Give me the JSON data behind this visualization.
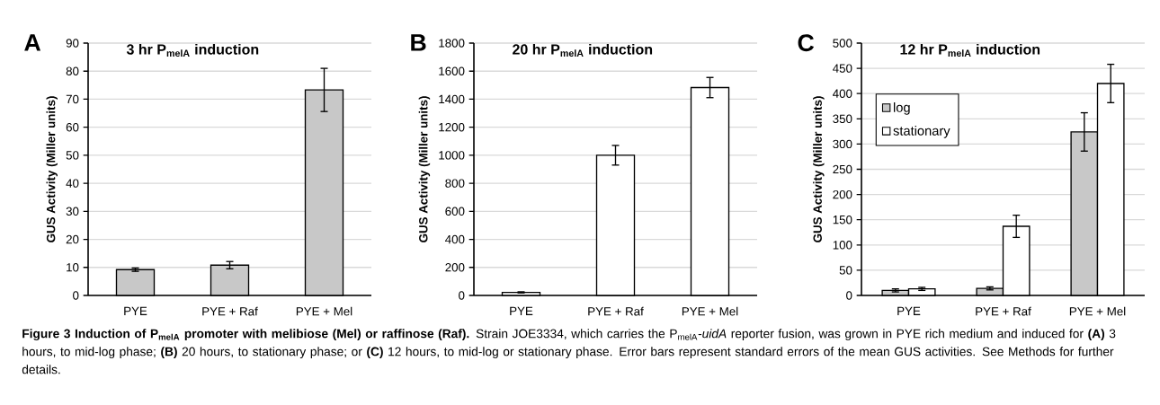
{
  "chart_data": [
    {
      "type": "bar",
      "title": "3 hr P$_{melA}$ induction",
      "ylabel": "GUS Activity (Miller units)",
      "categories": [
        "PYE",
        "PYE + Raf",
        "PYE + Mel"
      ],
      "series": [
        {
          "color": "#c8c8c8",
          "values": [
            9.2,
            10.8,
            73.3
          ],
          "errors": [
            0.6,
            1.3,
            7.7
          ]
        }
      ],
      "ylim": [
        0,
        90
      ],
      "yticks": [
        0,
        10,
        20,
        30,
        40,
        50,
        60,
        70,
        80,
        90
      ],
      "grid": "y",
      "annotations": [
        "A",
        "Figure 3 Induction of P$_{melA}$ promoter with melibiose (Mel) or raffinose (Raf).",
        "Strain JOE3334, which carries the P$_{melA}$-*uidA* reporter fusion, was grown in PYE rich medium and induced for **(A)** 3 hours, to mid-log phase; **(B)** 20 hours, to stationary phase; or **(C)** 12 hours, to mid-log or stationary phase. Error bars represent standard errors of the mean GUS activities. See Methods for further details."
      ]
    },
    {
      "type": "bar",
      "title": "20 hr P$_{melA}$ induction",
      "ylabel": "GUS Activity (Miller units)",
      "categories": [
        "PYE",
        "PYE + Raf",
        "PYE + Mel"
      ],
      "series": [
        {
          "color": "#ffffff",
          "values": [
            22,
            1000,
            1483
          ],
          "errors": [
            4,
            70,
            72
          ]
        }
      ],
      "ylim": [
        0,
        1800
      ],
      "yticks": [
        0,
        200,
        400,
        600,
        800,
        1000,
        1200,
        1400,
        1600,
        1800
      ],
      "grid": "y",
      "annotations": [
        "B"
      ]
    },
    {
      "type": "bar",
      "title": "12 hr P$_{melA}$ induction",
      "ylabel": "GUS Activity (Miller units)",
      "categories": [
        "PYE",
        "PYE + Raf",
        "PYE + Mel"
      ],
      "series": [
        {
          "name": "log",
          "color": "#c8c8c8",
          "values": [
            10,
            14,
            324
          ],
          "errors": [
            3,
            3,
            38
          ]
        },
        {
          "name": "stationary",
          "color": "#ffffff",
          "values": [
            13,
            137,
            420
          ],
          "errors": [
            3,
            22,
            38
          ]
        }
      ],
      "ylim": [
        0,
        500
      ],
      "yticks": [
        0,
        50,
        100,
        150,
        200,
        250,
        300,
        350,
        400,
        450,
        500
      ],
      "grid": "y",
      "legend": "top left",
      "annotations": [
        "C"
      ]
    }
  ]
}
